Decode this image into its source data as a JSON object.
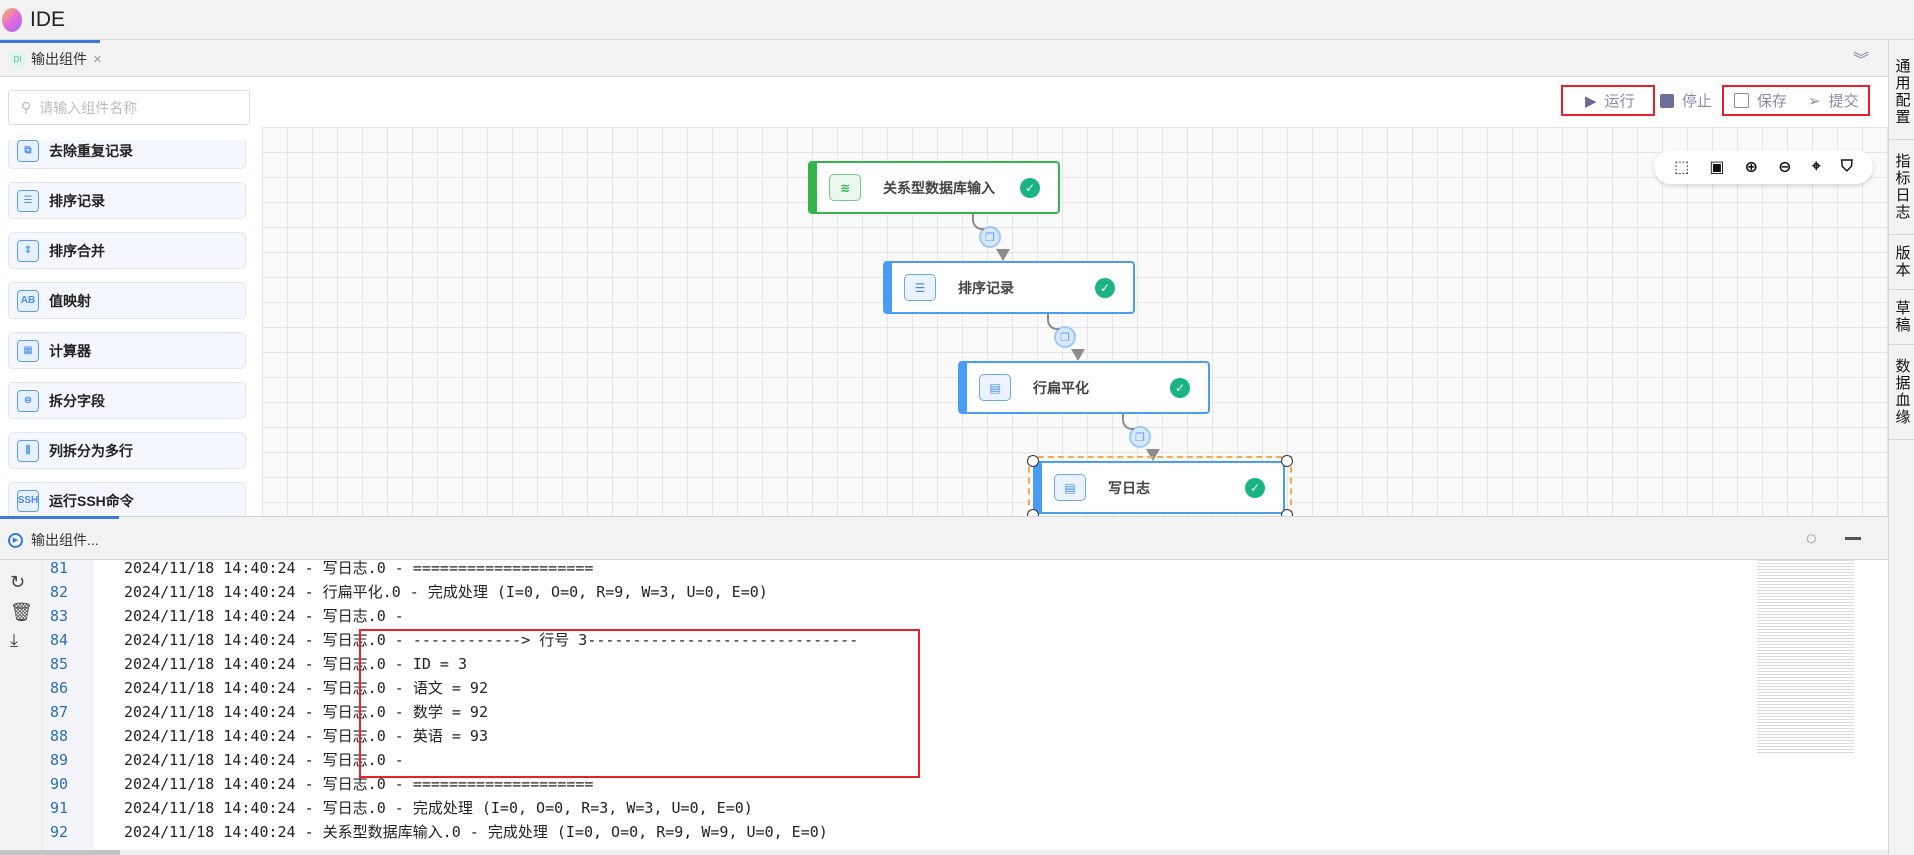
{
  "app": {
    "title": "IDE"
  },
  "tab": {
    "badge": "DI",
    "label": "输出组件",
    "close": "×"
  },
  "toolbar": {
    "run": "运行",
    "stop": "停止",
    "save": "保存",
    "submit": "提交"
  },
  "search": {
    "placeholder": "请输入组件名称"
  },
  "components": [
    "去除重复记录",
    "排序记录",
    "排序合并",
    "值映射",
    "计算器",
    "拆分字段",
    "列拆分为多行",
    "运行SSH命令"
  ],
  "component_icons": [
    "dedup-icon",
    "sort-icon",
    "merge-sort-icon",
    "value-map-icon",
    "calculator-icon",
    "split-field-icon",
    "column-split-icon",
    "ssh-icon"
  ],
  "nodes": [
    {
      "label": "关系型数据库输入",
      "icon": "database-icon",
      "status": "success"
    },
    {
      "label": "排序记录",
      "icon": "sort-icon",
      "status": "success"
    },
    {
      "label": "行扁平化",
      "icon": "flatten-icon",
      "status": "success"
    },
    {
      "label": "写日志",
      "icon": "log-icon",
      "status": "success",
      "selected": true
    }
  ],
  "palette": [
    "select-icon",
    "fit-icon",
    "zoom-in-icon",
    "zoom-out-icon",
    "locate-icon",
    "bookmark-icon"
  ],
  "right_tabs": [
    "通用配置",
    "指标日志",
    "版本",
    "草稿",
    "数据血缘"
  ],
  "bottom": {
    "title": "输出组件..."
  },
  "log": [
    {
      "n": "81",
      "text": "2024/11/18 14:40:24 - 写日志.0 - ===================="
    },
    {
      "n": "82",
      "text": "2024/11/18 14:40:24 - 行扁平化.0 - 完成处理 (I=0, O=0, R=9, W=3, U=0, E=0)"
    },
    {
      "n": "83",
      "text": "2024/11/18 14:40:24 - 写日志.0 -"
    },
    {
      "n": "84",
      "text": "2024/11/18 14:40:24 - 写日志.0 - ------------> 行号 3------------------------------"
    },
    {
      "n": "85",
      "text": "2024/11/18 14:40:24 - 写日志.0 - ID = 3"
    },
    {
      "n": "86",
      "text": "2024/11/18 14:40:24 - 写日志.0 - 语文 = 92"
    },
    {
      "n": "87",
      "text": "2024/11/18 14:40:24 - 写日志.0 - 数学 = 92"
    },
    {
      "n": "88",
      "text": "2024/11/18 14:40:24 - 写日志.0 - 英语 = 93"
    },
    {
      "n": "89",
      "text": "2024/11/18 14:40:24 - 写日志.0 -"
    },
    {
      "n": "90",
      "text": "2024/11/18 14:40:24 - 写日志.0 - ===================="
    },
    {
      "n": "91",
      "text": "2024/11/18 14:40:24 - 写日志.0 - 完成处理 (I=0, O=0, R=3, W=3, U=0, E=0)"
    },
    {
      "n": "92",
      "text": "2024/11/18 14:40:24 - 关系型数据库输入.0 - 完成处理 (I=0, O=0, R=9, W=9, U=0, E=0)"
    }
  ],
  "colors": {
    "accent": "#3a7bd5",
    "node_blue": "#4a9df5",
    "node_green": "#35b54a",
    "success": "#19b386",
    "highlight": "#e8202a"
  }
}
